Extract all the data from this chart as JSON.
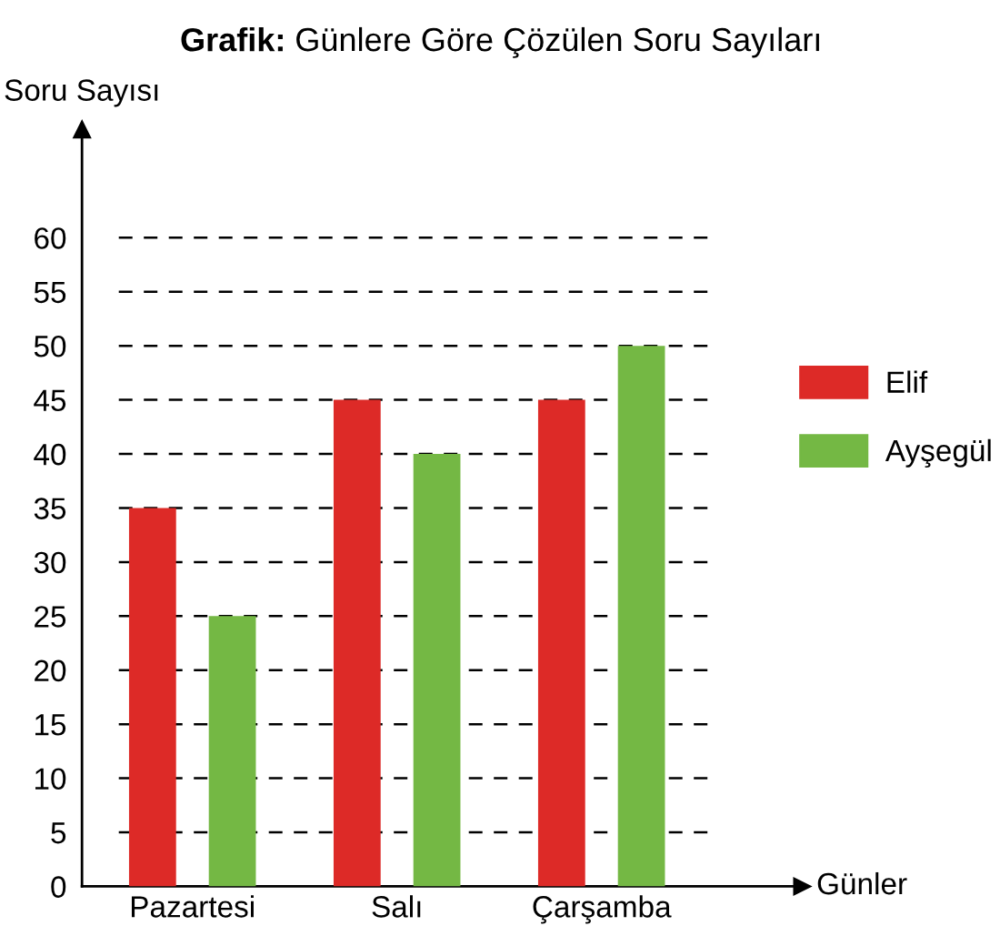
{
  "chart_data": {
    "type": "bar",
    "title": "Grafik: Günlere Göre Çözülen Soru Sayıları",
    "xlabel": "Günler",
    "ylabel": "Soru Sayısı",
    "categories": [
      "Pazartesi",
      "Salı",
      "Çarşamba"
    ],
    "series": [
      {
        "name": "Elif",
        "color": "#dd2a27",
        "values": [
          35,
          45,
          45
        ]
      },
      {
        "name": "Ayşegül",
        "color": "#74b844",
        "values": [
          25,
          40,
          50
        ]
      }
    ],
    "ylim": [
      0,
      70
    ],
    "yticks": [
      0,
      5,
      10,
      15,
      20,
      25,
      30,
      35,
      40,
      45,
      50,
      55,
      60
    ],
    "grid": "y",
    "legend": "right"
  }
}
